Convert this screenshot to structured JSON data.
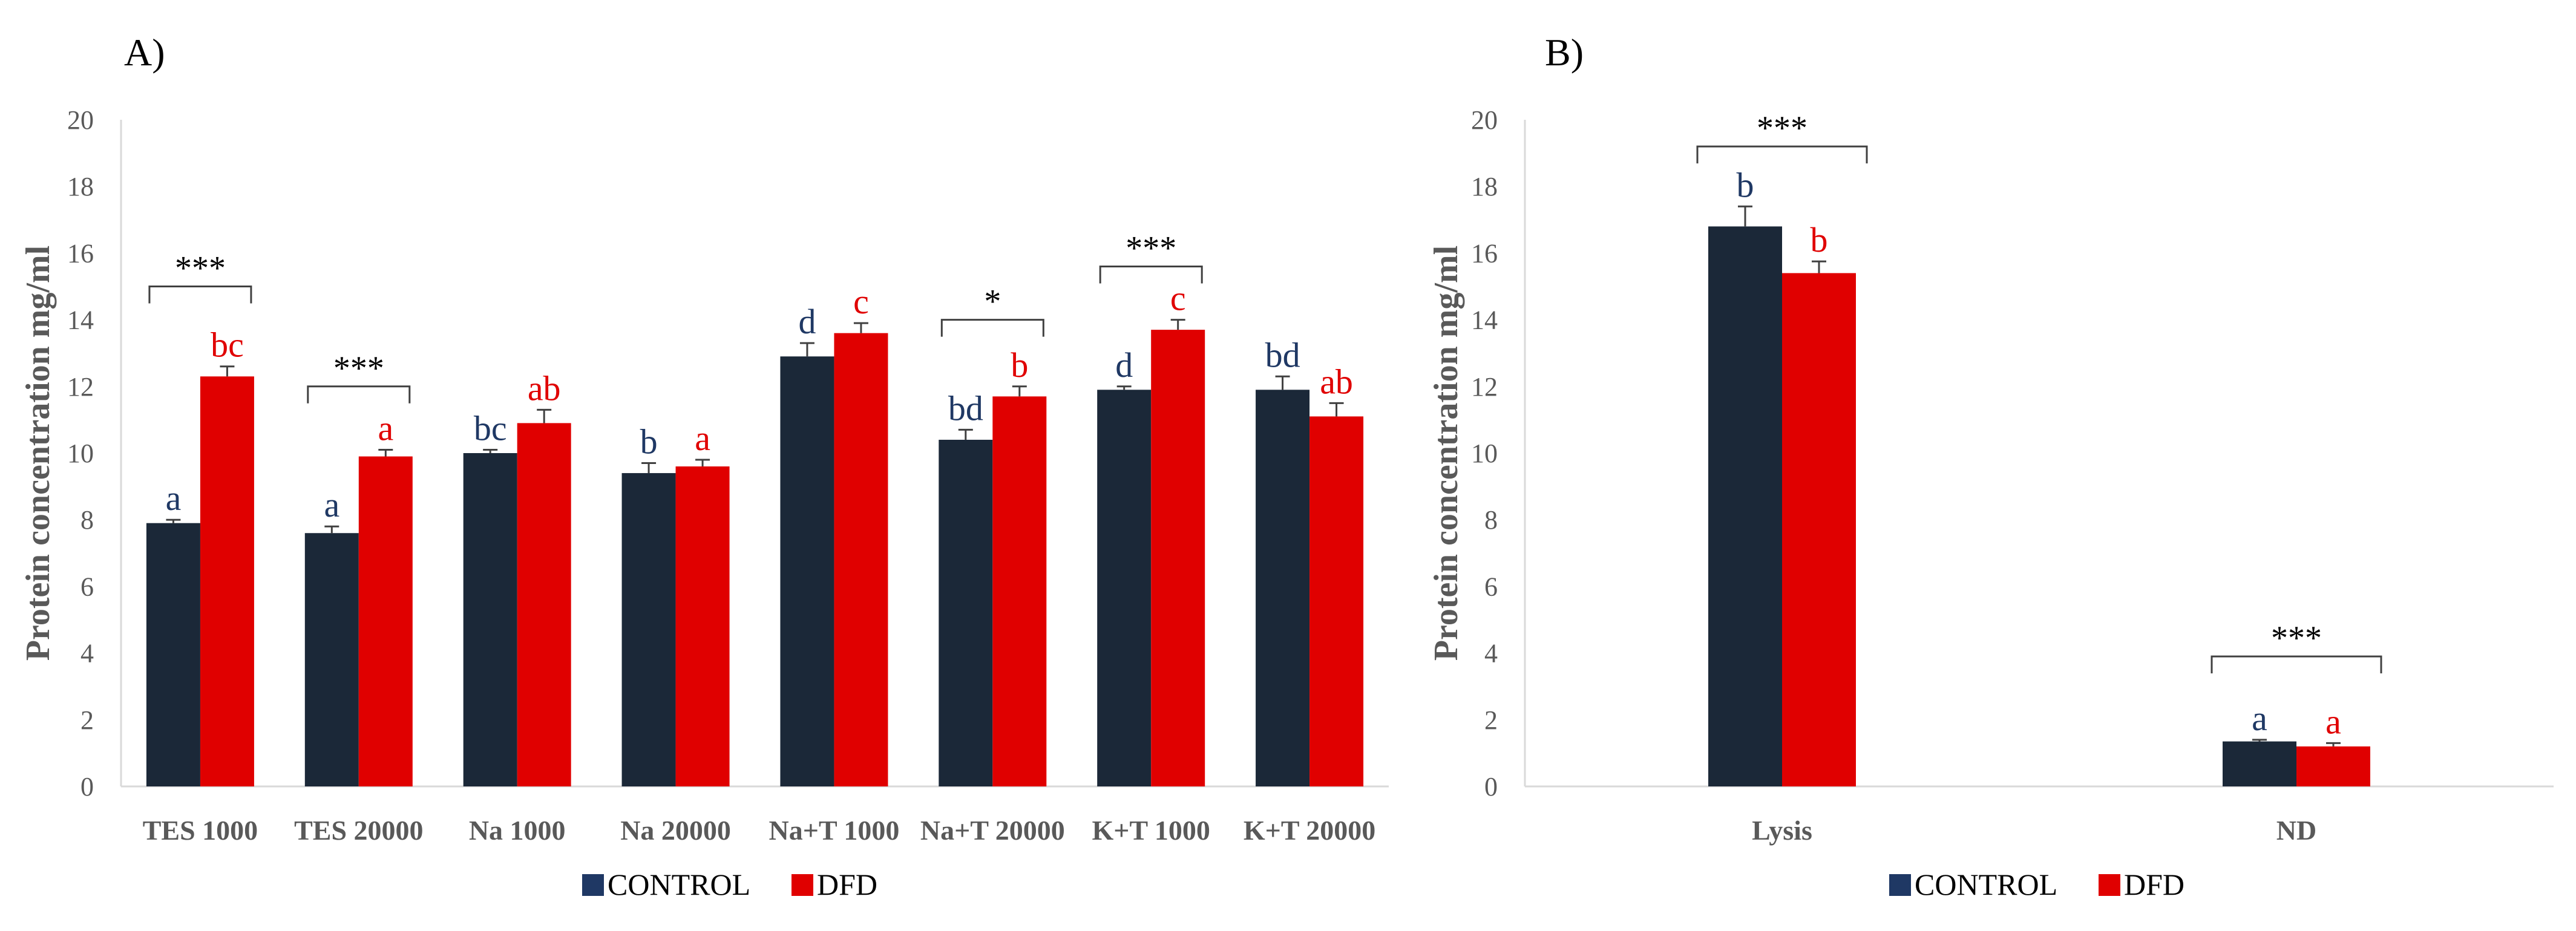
{
  "colors": {
    "control": "#1b2838",
    "control_letter": "#1f3864",
    "control_legend": "#1f3864",
    "dfd": "#e00000",
    "axis": "#d9d9d9",
    "error": "#404040"
  },
  "chart_data": [
    {
      "type": "bar",
      "panel_label": "A)",
      "ylabel": "Protein concentration mg/ml",
      "ylim": [
        0,
        20
      ],
      "yticks": [
        "0",
        "2",
        "4",
        "6",
        "8",
        "10",
        "12",
        "14",
        "16",
        "18",
        "20"
      ],
      "categories": [
        "TES 1000",
        "TES 20000",
        "Na 1000",
        "Na 20000",
        "Na+T 1000",
        "Na+T 20000",
        "K+T 1000",
        "K+T 20000"
      ],
      "series": [
        {
          "name": "CONTROL",
          "values": [
            7.9,
            7.6,
            10.0,
            9.4,
            12.9,
            10.4,
            11.9,
            11.9
          ],
          "errors": [
            0.1,
            0.2,
            0.1,
            0.3,
            0.4,
            0.3,
            0.1,
            0.4
          ],
          "letters": [
            "a",
            "a",
            "bc",
            "b",
            "d",
            "bd",
            "d",
            "bd"
          ]
        },
        {
          "name": "DFD",
          "values": [
            12.3,
            9.9,
            10.9,
            9.6,
            13.6,
            11.7,
            13.7,
            11.1
          ],
          "errors": [
            0.3,
            0.2,
            0.4,
            0.2,
            0.3,
            0.3,
            0.3,
            0.4
          ],
          "letters": [
            "bc",
            "a",
            "ab",
            "a",
            "c",
            "b",
            "c",
            "ab"
          ]
        }
      ],
      "significance": [
        {
          "category_index": 0,
          "label": "***",
          "level": 15.0
        },
        {
          "category_index": 1,
          "label": "***",
          "level": 12.0
        },
        {
          "category_index": 5,
          "label": "*",
          "level": 14.0
        },
        {
          "category_index": 6,
          "label": "***",
          "level": 15.6
        }
      ],
      "legend": [
        "CONTROL",
        "DFD"
      ]
    },
    {
      "type": "bar",
      "panel_label": "B)",
      "ylabel": "Protein concentration mg/ml",
      "ylim": [
        0,
        20
      ],
      "yticks": [
        "0",
        "2",
        "4",
        "6",
        "8",
        "10",
        "12",
        "14",
        "16",
        "18",
        "20"
      ],
      "categories": [
        "Lysis",
        "ND"
      ],
      "series": [
        {
          "name": "CONTROL",
          "values": [
            16.8,
            1.35
          ],
          "errors": [
            0.6,
            0.05
          ],
          "letters": [
            "b",
            "a"
          ]
        },
        {
          "name": "DFD",
          "values": [
            15.4,
            1.2
          ],
          "errors": [
            0.35,
            0.1
          ],
          "letters": [
            "b",
            "a"
          ]
        }
      ],
      "significance": [
        {
          "category_index": 0,
          "label": "***",
          "level": 19.2
        },
        {
          "category_index": 1,
          "label": "***",
          "level": 3.9
        }
      ],
      "legend": [
        "CONTROL",
        "DFD"
      ]
    }
  ]
}
